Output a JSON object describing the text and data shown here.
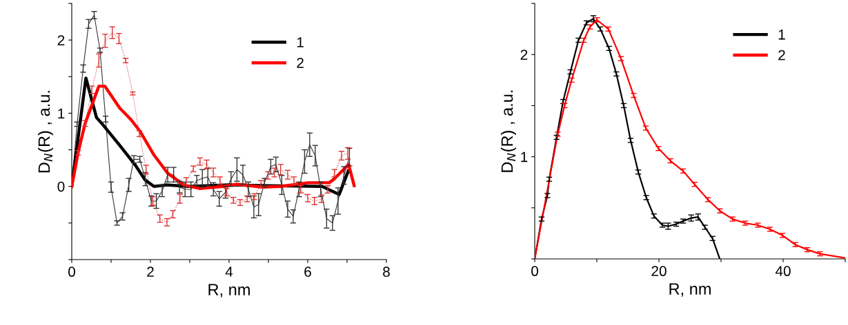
{
  "chart_data": [
    {
      "type": "line",
      "xlabel": "R, nm",
      "ylabel": "D$_{N}$(R) , a.u.",
      "xlim": [
        0,
        8
      ],
      "ylim": [
        -1,
        2.5
      ],
      "xticks": [
        0,
        {
          "value": 1,
          "label": null
        },
        2,
        {
          "value": 3,
          "label": null
        },
        4,
        {
          "value": 5,
          "label": null
        },
        6,
        {
          "value": 7,
          "label": null
        },
        8
      ],
      "yticks": [
        {
          "value": -1,
          "label": null
        },
        {
          "value": -0.5,
          "label": null
        },
        0,
        {
          "value": 0.5,
          "label": null
        },
        1,
        {
          "value": 1.5,
          "label": null
        },
        2,
        {
          "value": 2.5,
          "label": null
        }
      ],
      "grid": false,
      "legend": "top right",
      "marker": "none",
      "series": [
        {
          "color": "#333333",
          "line_style": "solid",
          "x": [
            0,
            0.135,
            0.29,
            0.43,
            0.57,
            0.72,
            0.86,
            1.0,
            1.15,
            1.29,
            1.45,
            1.58,
            1.73,
            1.87,
            2.02,
            2.15,
            2.3,
            2.44,
            2.59,
            2.74,
            2.88,
            3.03,
            3.18,
            3.32,
            3.46,
            3.6,
            3.75,
            3.91,
            4.05,
            4.2,
            4.35,
            4.49,
            4.63,
            4.75,
            4.9,
            5.06,
            5.19,
            5.34,
            5.49,
            5.63,
            5.78,
            5.92,
            6.05,
            6.19,
            6.33,
            6.48,
            6.63,
            6.77,
            6.92,
            7.06
          ],
          "values": [
            0,
            0.85,
            1.61,
            2.22,
            2.34,
            1.86,
            0.92,
            -0.01,
            -0.5,
            -0.41,
            0.02,
            0.37,
            0.37,
            0.1,
            -0.2,
            -0.2,
            -0.06,
            0.16,
            0.16,
            -0.01,
            -0.04,
            -0.04,
            0.08,
            0.11,
            0.13,
            -0.04,
            -0.17,
            -0.08,
            0.1,
            0.23,
            0.16,
            -0.04,
            -0.28,
            -0.25,
            0.05,
            0.27,
            0.3,
            0.02,
            -0.31,
            -0.41,
            -0.04,
            0.34,
            0.57,
            0.42,
            -0.04,
            -0.44,
            -0.5,
            -0.2,
            0.15,
            0.4
          ],
          "errors": [
            null,
            0.03,
            0.05,
            0.06,
            0.05,
            0.03,
            0.04,
            0.07,
            0.03,
            0.05,
            0.09,
            0.05,
            0.04,
            0.09,
            0.07,
            0.1,
            0.08,
            0.1,
            0.1,
            0.08,
            0.1,
            0.1,
            0.07,
            0.12,
            0.12,
            0.09,
            0.1,
            0.08,
            0.1,
            0.16,
            0.13,
            0.1,
            0.15,
            0.15,
            0.06,
            0.1,
            0.1,
            0.13,
            0.11,
            0.09,
            0.1,
            0.16,
            0.16,
            0.14,
            0.1,
            0.13,
            0.1,
            0.18,
            0.12,
            0.12
          ]
        },
        {
          "color": "#dd3333",
          "line_style": "dotted",
          "x": [
            0,
            0.16,
            0.34,
            0.51,
            0.69,
            0.85,
            1.03,
            1.2,
            1.37,
            1.55,
            1.72,
            1.89,
            2.06,
            2.24,
            2.42,
            2.57,
            2.75,
            2.91,
            3.09,
            3.26,
            3.43,
            3.6,
            3.77,
            3.94,
            4.11,
            4.28,
            4.46,
            4.64,
            4.81,
            4.99,
            5.15,
            5.31,
            5.49,
            5.65,
            5.82,
            6.0,
            6.17,
            6.35,
            6.51,
            6.68,
            6.86,
            7.02
          ],
          "values": [
            0,
            0.46,
            0.86,
            1.32,
            1.72,
            1.99,
            2.1,
            2.02,
            1.72,
            1.27,
            0.72,
            0.23,
            -0.2,
            -0.44,
            -0.49,
            -0.38,
            -0.17,
            0.07,
            0.24,
            0.34,
            0.3,
            0.19,
            0.08,
            -0.08,
            -0.19,
            -0.22,
            -0.17,
            -0.14,
            0.03,
            0.15,
            0.19,
            0.23,
            0.16,
            0.08,
            -0.04,
            -0.16,
            -0.2,
            -0.17,
            -0.04,
            0.18,
            0.42,
            0.45
          ],
          "errors": [
            null,
            0.03,
            0.04,
            0.05,
            0.09,
            0.09,
            0.08,
            0.07,
            0.03,
            0.02,
            0.04,
            0.06,
            0.06,
            0.05,
            0.05,
            0.05,
            0.06,
            0.05,
            0.04,
            0.05,
            0.06,
            0.06,
            0.05,
            0.05,
            0.04,
            0.04,
            0.04,
            0.04,
            0.05,
            0.05,
            0.06,
            0.07,
            0.06,
            0.05,
            0.05,
            0.05,
            0.05,
            0.05,
            0.05,
            0.05,
            0.06,
            0.08
          ]
        },
        {
          "name": "1",
          "color": "#000000",
          "line_style": "solid",
          "x": [
            0,
            0.36,
            0.63,
            0.78,
            1.22,
            1.63,
            1.86,
            2.09,
            2.4,
            2.97,
            4.0,
            5.0,
            6.37,
            6.8,
            7.03
          ],
          "values": [
            0,
            1.48,
            0.94,
            0.85,
            0.56,
            0.28,
            0.09,
            0,
            0.02,
            0,
            0.02,
            0.01,
            0,
            -0.11,
            0.21
          ]
        },
        {
          "name": "2",
          "color": "#ff0000",
          "line_style": "solid",
          "x": [
            0,
            0.16,
            0.34,
            0.69,
            0.84,
            1.22,
            1.51,
            1.74,
            2.09,
            2.44,
            2.85,
            3.26,
            3.85,
            4.2,
            4.84,
            5.31,
            6.01,
            6.54,
            6.65,
            7.04,
            7.18
          ],
          "values": [
            0,
            0.46,
            0.86,
            1.37,
            1.37,
            1.07,
            0.91,
            0.75,
            0.43,
            0.18,
            0.02,
            -0.03,
            0,
            0.03,
            -0.01,
            0,
            0.05,
            0.05,
            0.09,
            0.3,
            0.01
          ]
        }
      ]
    },
    {
      "type": "line",
      "xlabel": "R, nm",
      "ylabel": "D$_{N}$(R) , a.u.",
      "xlim": [
        0,
        50
      ],
      "ylim": [
        0,
        2.5
      ],
      "xticks": [
        0,
        {
          "value": 10,
          "label": null
        },
        20,
        {
          "value": 30,
          "label": null
        },
        40,
        {
          "value": 50,
          "label": null
        }
      ],
      "yticks": [
        {
          "value": 0,
          "label": null
        },
        {
          "value": 0.5,
          "label": null
        },
        1,
        {
          "value": 1.5,
          "label": null
        },
        2,
        {
          "value": 2.5,
          "label": null
        }
      ],
      "grid": false,
      "legend": "top right",
      "marker": "none",
      "series": [
        {
          "name": "1",
          "color": "#000000",
          "line_style": "solid",
          "x": [
            0,
            1.1,
            2.04,
            2.33,
            3.52,
            4.56,
            5.74,
            7.04,
            8.33,
            9.44,
            10.56,
            11.96,
            13.15,
            14.33,
            15.44,
            16.67,
            17.96,
            19.19,
            20.56,
            21.48,
            22.78,
            23.89,
            25.19,
            26.3,
            27.4,
            28.63,
            29.8
          ],
          "values": [
            0,
            0.39,
            0.62,
            0.78,
            1.19,
            1.54,
            1.83,
            2.14,
            2.31,
            2.35,
            2.25,
            2.06,
            1.81,
            1.5,
            1.16,
            0.85,
            0.6,
            0.42,
            0.33,
            0.32,
            0.34,
            0.37,
            0.4,
            0.41,
            0.31,
            0.2,
            0
          ],
          "errors": [
            null,
            0.02,
            0.02,
            0.02,
            0.02,
            0.02,
            0.02,
            0.02,
            0.02,
            0.03,
            0.02,
            0.02,
            0.02,
            0.02,
            0.02,
            0.02,
            0.02,
            0.02,
            0.02,
            0.03,
            0.02,
            0.02,
            0.03,
            0.03,
            0.02,
            0.02,
            null
          ]
        },
        {
          "name": "2",
          "color": "#ff0000",
          "line_style": "solid",
          "x": [
            0,
            3.7,
            4.81,
            5.93,
            7.89,
            8.89,
            10,
            11.85,
            13.89,
            15.93,
            17.89,
            19.93,
            21.85,
            23.89,
            25.74,
            27.89,
            29.81,
            31.85,
            33.89,
            35.93,
            37.89,
            39.89,
            41.96,
            43.89,
            45.93,
            47.96,
            50
          ],
          "values": [
            0,
            1.22,
            1.5,
            1.75,
            2.14,
            2.27,
            2.34,
            2.25,
            1.96,
            1.6,
            1.28,
            1.08,
            0.96,
            0.86,
            0.73,
            0.58,
            0.47,
            0.39,
            0.35,
            0.33,
            0.29,
            0.23,
            0.14,
            0.09,
            0.05,
            0.03,
            0.01
          ],
          "errors": [
            null,
            0.02,
            0.02,
            0.02,
            0.02,
            0.02,
            0.02,
            0.02,
            0.02,
            0.02,
            0.02,
            0.02,
            0.02,
            0.02,
            0.02,
            0.02,
            0.02,
            0.02,
            0.02,
            0.02,
            0.02,
            0.02,
            0.02,
            0.02,
            0.02,
            null,
            null
          ]
        }
      ]
    }
  ]
}
